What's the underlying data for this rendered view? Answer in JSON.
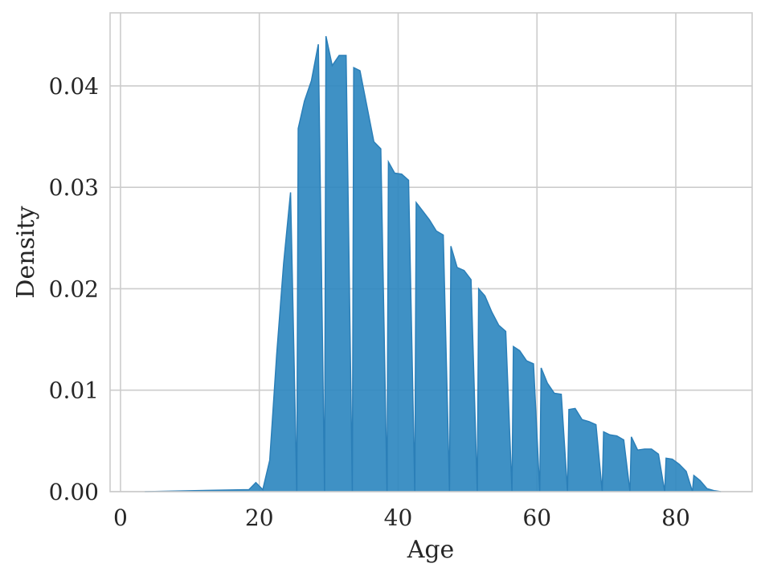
{
  "chart_data": {
    "type": "area",
    "title": "",
    "xlabel": "Age",
    "ylabel": "Density",
    "xlim": [
      -1.5,
      91
    ],
    "ylim": [
      0,
      0.0472
    ],
    "xticks": [
      0,
      20,
      40,
      60,
      80
    ],
    "xtick_labels": [
      "0",
      "20",
      "40",
      "60",
      "80"
    ],
    "yticks": [
      0,
      0.01,
      0.02,
      0.03,
      0.04
    ],
    "ytick_labels": [
      "0.00",
      "0.01",
      "0.02",
      "0.03",
      "0.04"
    ],
    "grid": true,
    "legend": "none",
    "color": "#2f88c0",
    "edge_color": "#2b7fb8",
    "series": [
      {
        "x": [
          3.5,
          18.5,
          19.5,
          20.5,
          21.5,
          22.5,
          23.5,
          24.5,
          25.4,
          25.6,
          26.5,
          27.5,
          28.5,
          29.4,
          29.6,
          30.5,
          31.5,
          32.5,
          33.4,
          33.6,
          34.5,
          35.5,
          36.5,
          37.5,
          38.4,
          38.6,
          39.5,
          40.5,
          41.5,
          42.4,
          42.6,
          43.5,
          44.5,
          45.5,
          46.5,
          47.4,
          47.6,
          48.5,
          49.5,
          50.5,
          51.4,
          51.6,
          52.5,
          53.5,
          54.5,
          55.5,
          56.4,
          56.6,
          57.5,
          58.5,
          59.5,
          60.4,
          60.6,
          61.5,
          62.5,
          63.5,
          64.4,
          64.6,
          65.5,
          66.5,
          67.5,
          68.5,
          69.4,
          69.6,
          70.5,
          71.5,
          72.5,
          73.4,
          73.6,
          74.5,
          75.5,
          76.5,
          77.5,
          78.4,
          78.6,
          79.5,
          80.5,
          81.5,
          82.4,
          82.6,
          83.5,
          84.5,
          85.5,
          86.5
        ],
        "y": [
          0.0,
          0.0002,
          0.0009,
          0.0002,
          0.0031,
          0.0135,
          0.0225,
          0.0295,
          0.0,
          0.0358,
          0.0385,
          0.0405,
          0.0441,
          0.0,
          0.0449,
          0.042,
          0.043,
          0.043,
          0.0,
          0.0418,
          0.0415,
          0.038,
          0.0345,
          0.0338,
          0.0,
          0.0325,
          0.0314,
          0.0313,
          0.0307,
          0.0,
          0.0285,
          0.0277,
          0.0268,
          0.0257,
          0.0253,
          0.0,
          0.0242,
          0.0221,
          0.0218,
          0.0209,
          0.0,
          0.02,
          0.0193,
          0.0177,
          0.0164,
          0.0158,
          0.0,
          0.0143,
          0.0139,
          0.0129,
          0.0126,
          0.0,
          0.0122,
          0.0107,
          0.0097,
          0.0096,
          0.0,
          0.0081,
          0.0082,
          0.0071,
          0.0069,
          0.0066,
          0.0,
          0.0059,
          0.0056,
          0.0055,
          0.0051,
          0.0,
          0.0054,
          0.0041,
          0.0042,
          0.0042,
          0.0037,
          0.0,
          0.0033,
          0.0032,
          0.0027,
          0.002,
          0.0,
          0.0016,
          0.0011,
          0.0003,
          0.0001,
          0.0
        ]
      }
    ]
  }
}
